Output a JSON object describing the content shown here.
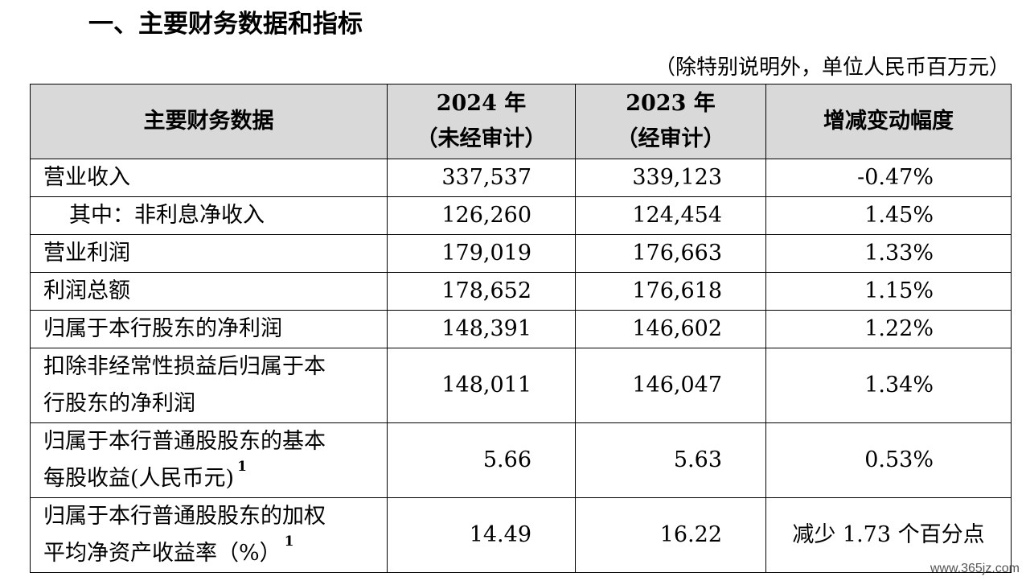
{
  "heading": "一、主要财务数据和指标",
  "unit_note": "（除特别说明外，单位人民币百万元）",
  "table": {
    "headers": {
      "col0": "主要财务数据",
      "col1_line1": "2024 年",
      "col1_line2": "（未经审计）",
      "col2_line1": "2023 年",
      "col2_line2": "（经审计）",
      "col3": "增减变动幅度"
    },
    "rows": [
      {
        "label": "营业收入",
        "y2024": "337,537",
        "y2023": "339,123",
        "change": "-0.47%"
      },
      {
        "label": "其中：非利息净收入",
        "y2024": "126,260",
        "y2023": "124,454",
        "change": "1.45%"
      },
      {
        "label": "营业利润",
        "y2024": "179,019",
        "y2023": "176,663",
        "change": "1.33%"
      },
      {
        "label": "利润总额",
        "y2024": "178,652",
        "y2023": "176,618",
        "change": "1.15%"
      },
      {
        "label": "归属于本行股东的净利润",
        "y2024": "148,391",
        "y2023": "146,602",
        "change": "1.22%"
      },
      {
        "label_line1": "扣除非经常性损益后归属于本",
        "label_line2": "行股东的净利润",
        "y2024": "148,011",
        "y2023": "146,047",
        "change": "1.34%"
      },
      {
        "label_line1": "归属于本行普通股股东的基本",
        "label_line2": "每股收益(人民币元)",
        "footnote": "1",
        "y2024": "5.66",
        "y2023": "5.63",
        "change": "0.53%"
      },
      {
        "label_line1": "归属于本行普通股股东的加权",
        "label_line2": "平均净资产收益率（%）",
        "footnote": "1",
        "y2024": "14.49",
        "y2023": "16.22",
        "change": "减少 1.73 个百分点"
      }
    ]
  },
  "watermark": "www.365jz.com"
}
